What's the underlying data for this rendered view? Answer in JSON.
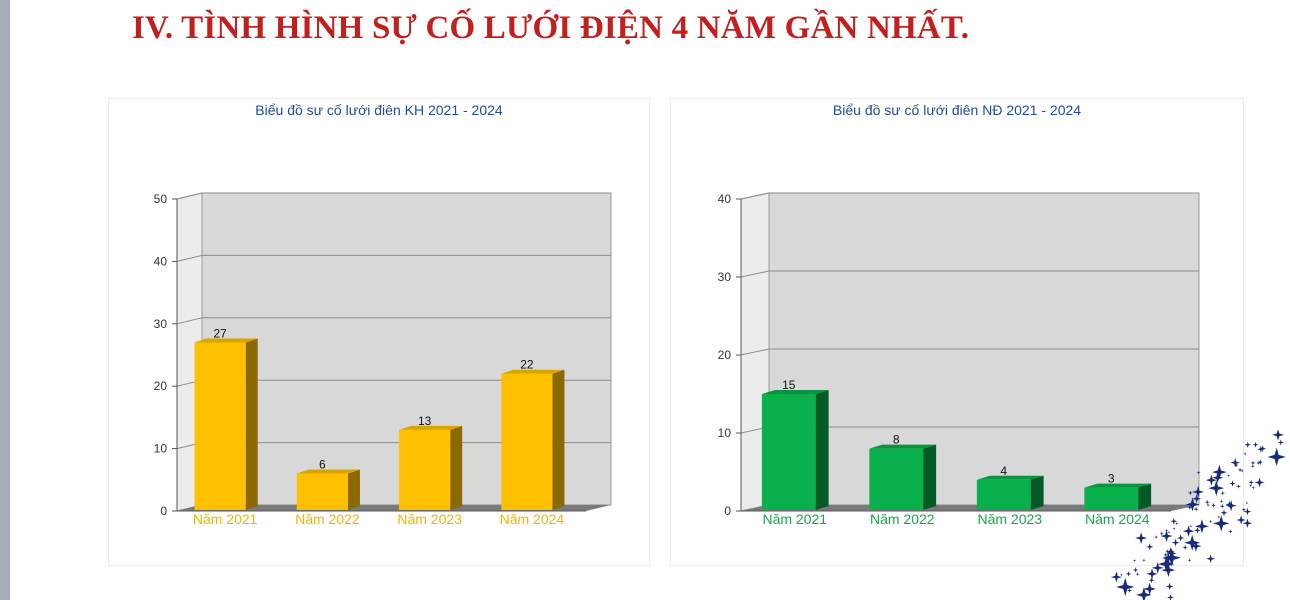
{
  "page": {
    "title": "IV. TÌNH HÌNH SỰ CỐ LƯỚI ĐIỆN 4 NĂM GẦN NHẤT."
  },
  "chart_data": [
    {
      "type": "bar",
      "title": "Biểu đồ sư cố lưới điên KH 2021 - 2024",
      "categories": [
        "Năm 2021",
        "Năm 2022",
        "Năm 2023",
        "Năm 2024"
      ],
      "values": [
        27,
        6,
        13,
        22
      ],
      "ylim": [
        0,
        50
      ],
      "yticks": [
        0,
        10,
        20,
        30,
        40,
        50
      ],
      "xlabel": "",
      "ylabel": "",
      "grid": true,
      "legend": "none",
      "bar_color": "#ffc000",
      "bar_side_color": "#8a6a00",
      "bar_top_color": "#d9a400",
      "category_label_color": "#f2b600"
    },
    {
      "type": "bar",
      "title": "Biểu đồ sư cố lưới điên NĐ 2021 - 2024",
      "categories": [
        "Năm 2021",
        "Năm 2022",
        "Năm 2023",
        "Năm 2024"
      ],
      "values": [
        15,
        8,
        4,
        3
      ],
      "ylim": [
        0,
        40
      ],
      "yticks": [
        0,
        10,
        20,
        30,
        40
      ],
      "xlabel": "",
      "ylabel": "",
      "grid": true,
      "legend": "none",
      "bar_color": "#09b04c",
      "bar_side_color": "#035a24",
      "bar_top_color": "#0a9440",
      "category_label_color": "#16a84e"
    }
  ],
  "colors": {
    "title": "#c41e1e",
    "chart_title": "#1f4e96",
    "plot_wall": "#d8d8d8",
    "floor": "#7a7a7a",
    "stars": "#1a2a7a"
  }
}
